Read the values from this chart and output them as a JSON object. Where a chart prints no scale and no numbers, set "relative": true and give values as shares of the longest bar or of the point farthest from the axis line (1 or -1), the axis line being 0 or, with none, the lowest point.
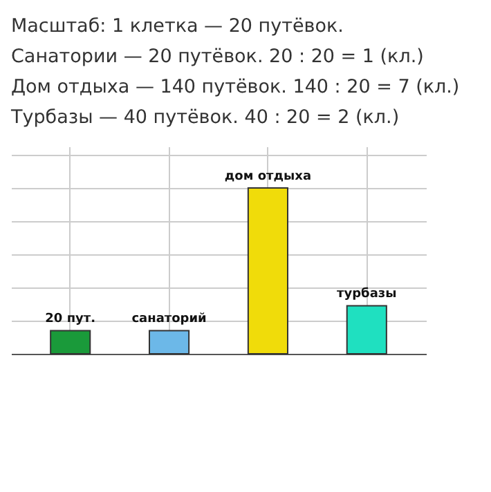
{
  "chart_data": {
    "type": "bar",
    "relative": true,
    "annotations": [
      "Масштаб: 1 клетка — 20 путёвок.",
      "Санатории — 20 путёвок. 20 : 20 = 1 (кл.)",
      "Дом отдыха — 140 путёвок. 140 : 20 = 7 (кл.)",
      "Турбазы — 40 путёвок. 40 : 20 = 2 (кл.)"
    ],
    "categories": [
      "20 пут.",
      "санаторий",
      "дом отдыха",
      "турбазы"
    ],
    "values": [
      0.14,
      0.14,
      1,
      0.29
    ],
    "colors": [
      "#1a9a3a",
      "#6cb8e8",
      "#f0dc0a",
      "#1fe0c0"
    ],
    "grid": true
  }
}
